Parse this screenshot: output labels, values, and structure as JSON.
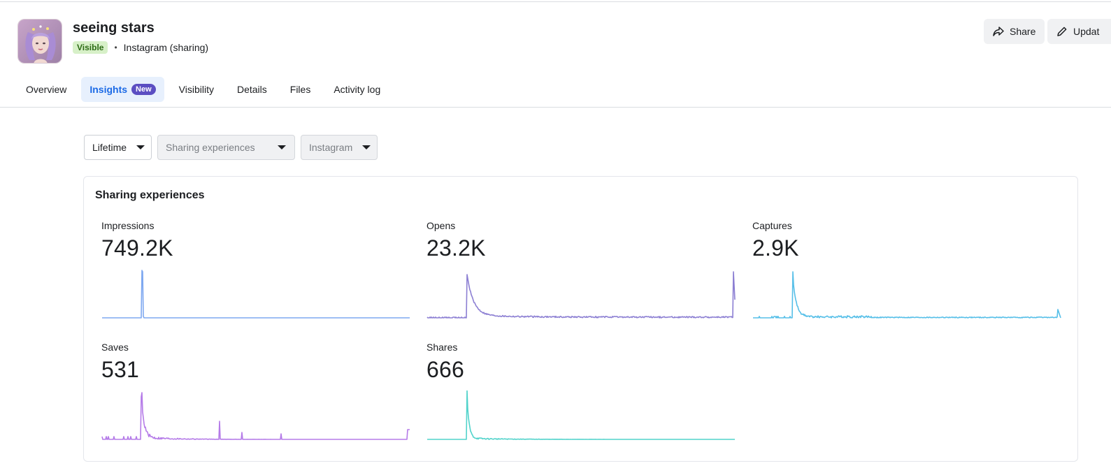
{
  "header": {
    "title": "seeing stars",
    "visibility_badge": "Visible",
    "separator": "•",
    "platform": "Instagram (sharing)",
    "share_label": "Share",
    "update_label": "Updat"
  },
  "tabs": [
    {
      "label": "Overview"
    },
    {
      "label": "Insights",
      "badge": "New",
      "active": true
    },
    {
      "label": "Visibility"
    },
    {
      "label": "Details"
    },
    {
      "label": "Files"
    },
    {
      "label": "Activity log"
    }
  ],
  "filters": {
    "time_range": "Lifetime",
    "experience": "Sharing experiences",
    "platform": "Instagram"
  },
  "card": {
    "title": "Sharing experiences",
    "metrics": [
      {
        "label": "Impressions",
        "value": "749.2K",
        "color": "#7ea8f0"
      },
      {
        "label": "Opens",
        "value": "23.2K",
        "color": "#8c7fd3"
      },
      {
        "label": "Captures",
        "value": "2.9K",
        "color": "#56bfe8"
      },
      {
        "label": "Saves",
        "value": "531",
        "color": "#b57be8"
      },
      {
        "label": "Shares",
        "value": "666",
        "color": "#52d3cb"
      }
    ]
  }
}
